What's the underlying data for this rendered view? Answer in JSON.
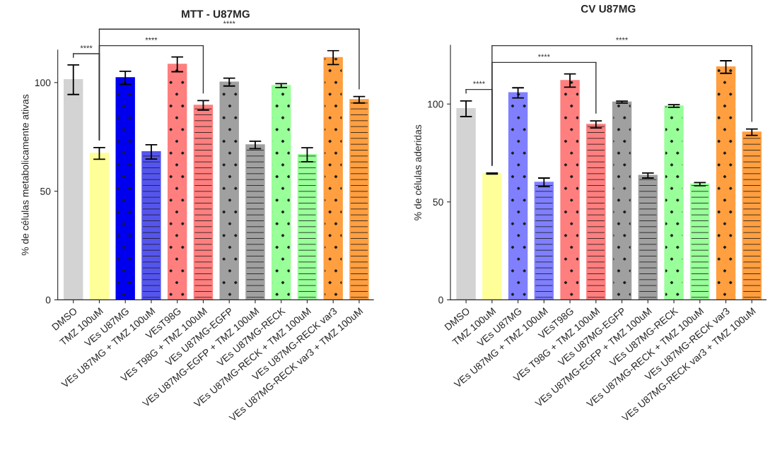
{
  "chart_data": [
    {
      "type": "bar",
      "title": "MTT - U87MG",
      "ylabel": "% de células metabolicamente ativas",
      "categories": [
        "DMSO",
        "TMZ 100uM",
        "VEs U87MG",
        "VEs U87MG + TMZ 100uM",
        "VEsT98G",
        "VEs T98G + TMZ 100uM",
        "VEs U87MG-EGFP",
        "VEs U87MG-EGFP + TMZ 100uM",
        "VEs U87MG-RECK",
        "VEs U87MG-RECK + TMZ 100uM",
        "VEs U87MG-RECK var3",
        "VEs U87MG-RECK var3 + TMZ 100uM"
      ],
      "values": [
        101.3,
        67.4,
        102.2,
        68.1,
        108.4,
        89.5,
        100.2,
        71.3,
        98.6,
        66.8,
        111.5,
        92.1
      ],
      "errors": [
        6.8,
        2.7,
        3.0,
        3.3,
        3.4,
        2.2,
        1.8,
        1.7,
        0.9,
        3.2,
        3.2,
        1.5
      ],
      "colors": [
        "#d3d3d3",
        "#ffff99",
        "#0000ee",
        "#5555ee",
        "#ff7f7f",
        "#ff7f7f",
        "#a0a0a0",
        "#a0a0a0",
        "#99ff99",
        "#99ff99",
        "#ff9f40",
        "#ff9f40"
      ],
      "ylim": [
        0,
        115
      ],
      "yticks": [
        0,
        50,
        100
      ],
      "grid": false,
      "legend": false,
      "annotations": [
        "****",
        "****",
        "****"
      ]
    },
    {
      "type": "bar",
      "title": "CV U87MG",
      "ylabel": "% de células aderidas",
      "categories": [
        "DMSO",
        "TMZ 100uM",
        "VEs U87MG",
        "VEs U87MG + TMZ 100uM",
        "VEsT98G",
        "VEs T98G + TMZ 100uM",
        "VEs U87MG-EGFP",
        "VEs U87MG-EGFP + TMZ 100uM",
        "VEs U87MG-RECK",
        "VEs U87MG-RECK + TMZ 100uM",
        "VEs U87MG-RECK var3",
        "VEs U87MG-RECK var3 + TMZ 100uM"
      ],
      "values": [
        97.6,
        64.5,
        105.7,
        60.0,
        112.0,
        89.6,
        101.0,
        63.5,
        99.0,
        59.1,
        118.9,
        85.6
      ],
      "errors": [
        4.0,
        0.3,
        2.6,
        2.2,
        3.4,
        1.8,
        0.5,
        1.3,
        0.7,
        0.8,
        3.2,
        1.6
      ],
      "colors": [
        "#d3d3d3",
        "#ffff99",
        "#8080ff",
        "#8080ff",
        "#ff7f7f",
        "#ff7f7f",
        "#a0a0a0",
        "#a0a0a0",
        "#99ff99",
        "#99ff99",
        "#ff9f40",
        "#ff9f40"
      ],
      "ylim": [
        0,
        130
      ],
      "yticks": [
        0,
        50,
        100
      ],
      "grid": false,
      "legend": false,
      "annotations": [
        "****",
        "****",
        "****"
      ]
    }
  ]
}
